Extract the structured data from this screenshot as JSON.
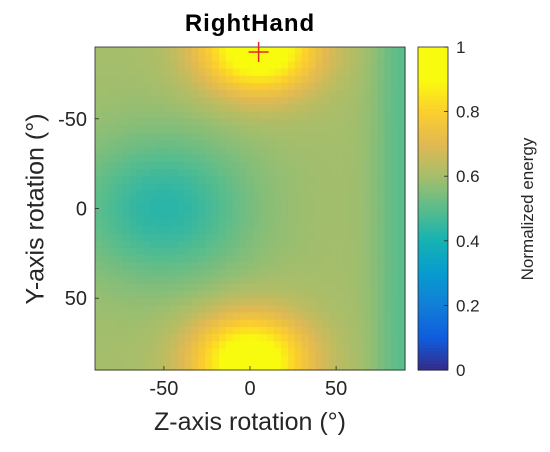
{
  "chart_data": {
    "type": "heatmap",
    "title": "RightHand",
    "xlabel": "Z-axis rotation (°)",
    "ylabel": "Y-axis rotation (°)",
    "xlim": [
      -90,
      90
    ],
    "ylim": [
      -90,
      90
    ],
    "y_direction": "reversed",
    "x_ticks": [
      -50,
      0,
      50
    ],
    "y_ticks": [
      -50,
      0,
      50
    ],
    "colorbar": {
      "label": "Normalized energy",
      "range": [
        0,
        1
      ],
      "ticks": [
        0,
        0.2,
        0.4,
        0.6,
        0.8,
        1
      ],
      "colormap": "parula"
    },
    "features": [
      {
        "type": "maximum",
        "x": 5,
        "y": -90,
        "value": 1.0
      },
      {
        "type": "maximum",
        "x": 0,
        "y": 85,
        "value": 0.98
      },
      {
        "type": "minimum",
        "x": -50,
        "y": 0,
        "value": 0.43
      }
    ],
    "marker": {
      "symbol": "+",
      "x": 5,
      "y": -90,
      "color": "#e0282a"
    },
    "grid": false
  }
}
